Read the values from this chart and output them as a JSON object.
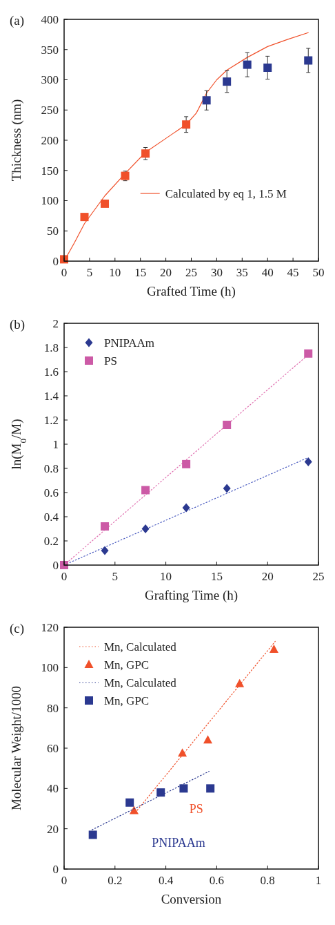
{
  "chart_data": [
    {
      "type": "scatter",
      "title": "(a)",
      "xlabel": "Grafted Time (h)",
      "ylabel": "Thickness (nm)",
      "xlim": [
        0,
        50
      ],
      "xticks": [
        0,
        5,
        10,
        15,
        20,
        25,
        30,
        35,
        40,
        45,
        50
      ],
      "ylim": [
        0,
        400
      ],
      "yticks": [
        0,
        50,
        100,
        150,
        200,
        250,
        300,
        350,
        400
      ],
      "grid": false,
      "legend": "bottom right",
      "series": [
        {
          "type": "line",
          "name": "Calculated by eq 1, 1.5 M",
          "color": "#f0502a",
          "marker": "none",
          "line_style": "solid",
          "x": [
            0,
            2,
            4,
            8,
            12,
            16,
            20,
            24,
            26,
            28,
            30,
            32,
            36,
            40,
            44,
            48
          ],
          "values": [
            0,
            30,
            62,
            108,
            145,
            180,
            203,
            226,
            245,
            278,
            300,
            316,
            337,
            355,
            367,
            378
          ]
        },
        {
          "color": "#f0502a",
          "marker": "square",
          "x": [
            0,
            4,
            8,
            12,
            16,
            24
          ],
          "values": [
            3,
            73,
            95,
            141,
            178,
            226
          ],
          "errors": [
            null,
            null,
            null,
            8,
            10,
            13
          ]
        },
        {
          "color": "#2b3990",
          "marker": "square",
          "x": [
            28,
            32,
            36,
            40,
            48
          ],
          "values": [
            266,
            297,
            325,
            320,
            332
          ],
          "errors": [
            16,
            18,
            20,
            19,
            20
          ]
        }
      ]
    },
    {
      "type": "scatter",
      "title": "(b)",
      "xlabel": "Grafting Time (h)",
      "ylabel": "ln(M$_{0}$/M)",
      "xlim": [
        0,
        25
      ],
      "xticks": [
        0,
        5,
        10,
        15,
        20,
        25
      ],
      "ylim": [
        0,
        2
      ],
      "yticks": [
        0,
        0.2,
        0.4,
        0.6,
        0.8,
        1,
        1.2,
        1.4,
        1.6,
        1.8,
        2
      ],
      "grid": false,
      "legend": "top left",
      "series": [
        {
          "type": "line",
          "color": "#4a5bc0",
          "marker": "none",
          "line_style": "dotted",
          "x": [
            0,
            24
          ],
          "values": [
            0,
            0.89
          ]
        },
        {
          "type": "line",
          "color": "#e070b0",
          "marker": "none",
          "line_style": "dotted",
          "x": [
            0,
            24
          ],
          "values": [
            0,
            1.74
          ]
        },
        {
          "name": "PNIPAAm",
          "color": "#2b3990",
          "marker": "diamond",
          "x": [
            4,
            8,
            12,
            16,
            24
          ],
          "values": [
            0.12,
            0.3,
            0.475,
            0.635,
            0.855
          ]
        },
        {
          "name": "PS",
          "color": "#cc5aa6",
          "marker": "square",
          "x": [
            0,
            4,
            8,
            12,
            16,
            24
          ],
          "values": [
            0,
            0.32,
            0.62,
            0.835,
            1.16,
            1.75
          ]
        }
      ]
    },
    {
      "type": "scatter",
      "title": "(c)",
      "xlabel": "Conversion",
      "ylabel": "Molecular Weight/1000",
      "xlim": [
        0,
        1
      ],
      "xticks": [
        0,
        0.2,
        0.4,
        0.6,
        0.8,
        1
      ],
      "ylim": [
        0,
        120
      ],
      "yticks": [
        0,
        20,
        40,
        60,
        80,
        100,
        120
      ],
      "grid": false,
      "legend": "top left",
      "annotations": [
        "PS",
        "PNIPAAm"
      ],
      "series": [
        {
          "type": "line",
          "name": "Mn, Calculated",
          "color": "#f0502a",
          "marker": "none",
          "line_style": "dotted",
          "x": [
            0.28,
            0.83
          ],
          "values": [
            28,
            113
          ]
        },
        {
          "name": "Mn, GPC",
          "color": "#f0502a",
          "marker": "triangle",
          "x": [
            0.275,
            0.465,
            0.565,
            0.69,
            0.825
          ],
          "values": [
            29,
            57.5,
            64,
            92,
            109
          ]
        },
        {
          "type": "line",
          "name": "Mn, Calculated",
          "color": "#2b3990",
          "marker": "none",
          "line_style": "dotted",
          "x": [
            0.11,
            0.57
          ],
          "values": [
            19.5,
            48.5
          ]
        },
        {
          "name": "Mn, GPC",
          "color": "#2b3990",
          "marker": "square",
          "x": [
            0.113,
            0.258,
            0.38,
            0.47,
            0.575
          ],
          "values": [
            17,
            33,
            38,
            40,
            40
          ]
        }
      ]
    }
  ]
}
